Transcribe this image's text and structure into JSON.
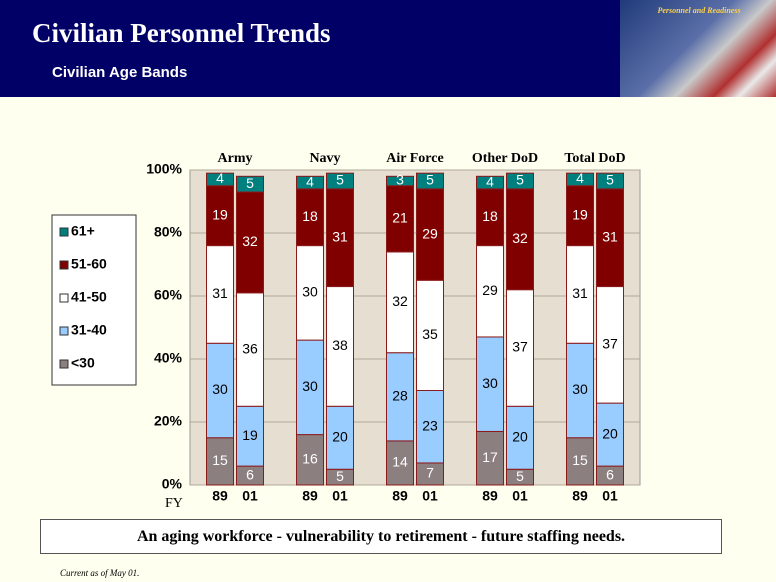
{
  "header": {
    "title": "Civilian Personnel Trends",
    "subtitle": "Civilian Age Bands",
    "logo_text": "Personnel and Readiness"
  },
  "chart_data": {
    "type": "stacked_bar",
    "groups": [
      "Army",
      "Navy",
      "Air Force",
      "Other DoD",
      "Total DoD"
    ],
    "categories": [
      "89",
      "01",
      "89",
      "01",
      "89",
      "01",
      "89",
      "01",
      "89",
      "01"
    ],
    "x_label": "FY",
    "series": [
      {
        "name": "<30",
        "color": "#8c7f7f",
        "text_color": "#ffffff",
        "values": [
          15,
          6,
          16,
          5,
          14,
          7,
          17,
          5,
          15,
          6
        ]
      },
      {
        "name": "31-40",
        "color": "#99ccff",
        "text_color": "#000000",
        "values": [
          30,
          19,
          30,
          20,
          28,
          23,
          30,
          20,
          30,
          20
        ]
      },
      {
        "name": "41-50",
        "color": "#ffffff",
        "text_color": "#000000",
        "values": [
          31,
          36,
          30,
          38,
          32,
          35,
          29,
          37,
          31,
          37
        ]
      },
      {
        "name": "51-60",
        "color": "#800000",
        "text_color": "#ffffff",
        "values": [
          19,
          32,
          18,
          31,
          21,
          29,
          18,
          32,
          19,
          31
        ]
      },
      {
        "name": "61+",
        "color": "#007f7f",
        "text_color": "#ffffff",
        "values": [
          4,
          5,
          4,
          5,
          3,
          5,
          4,
          5,
          4,
          5
        ]
      }
    ],
    "ylim": [
      0,
      100
    ],
    "yticks": [
      {
        "value": 0,
        "label": "0%"
      },
      {
        "value": 20,
        "label": "20%"
      },
      {
        "value": 40,
        "label": "40%"
      },
      {
        "value": 60,
        "label": "60%"
      },
      {
        "value": 80,
        "label": "80%"
      },
      {
        "value": 100,
        "label": "100%"
      }
    ],
    "grid": true
  },
  "footer": {
    "message": "An aging workforce - vulnerability to retirement - future staffing needs.",
    "note": "Current as of May 01."
  }
}
